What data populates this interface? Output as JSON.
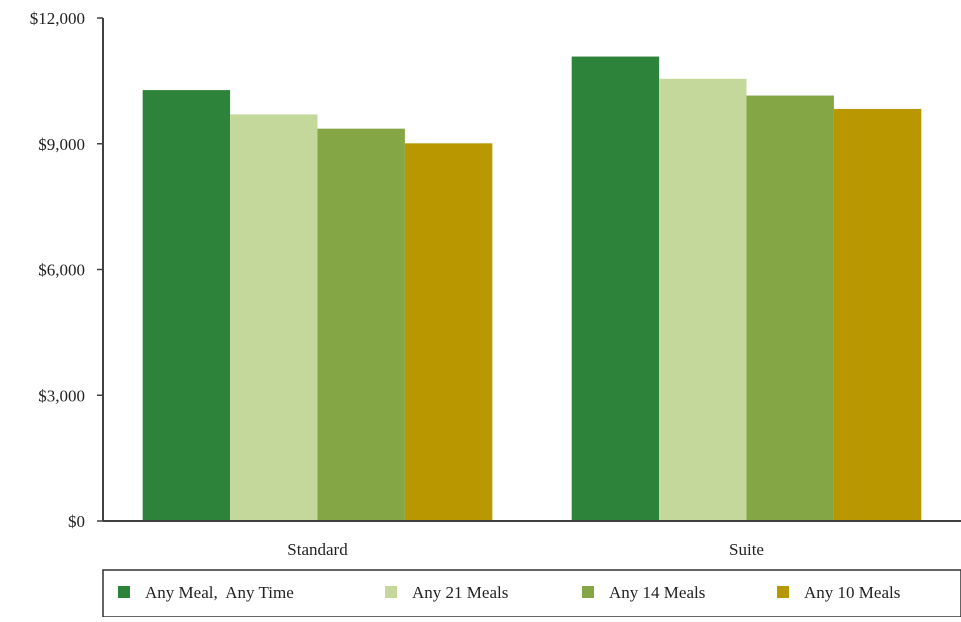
{
  "chart_data": {
    "type": "bar",
    "categories": [
      "Standard",
      "Suite"
    ],
    "series": [
      {
        "name": "Any Meal,  Any Time",
        "color": "#2e833a",
        "values": [
          10280,
          11080
        ]
      },
      {
        "name": "Any 21 Meals",
        "color": "#c5d89c",
        "values": [
          9700,
          10550
        ]
      },
      {
        "name": "Any 14 Meals",
        "color": "#84a645",
        "values": [
          9360,
          10150
        ]
      },
      {
        "name": "Any 10 Meals",
        "color": "#b89700",
        "values": [
          9010,
          9830
        ]
      }
    ],
    "ylim": [
      0,
      12000
    ],
    "yticks": [
      0,
      3000,
      6000,
      9000,
      12000
    ],
    "ytick_labels": [
      "$0",
      "$3,000",
      "$6,000",
      "$9,000",
      "$12,000"
    ],
    "title": "",
    "xlabel": "",
    "ylabel": "",
    "grid": false,
    "legend_position": "bottom"
  }
}
